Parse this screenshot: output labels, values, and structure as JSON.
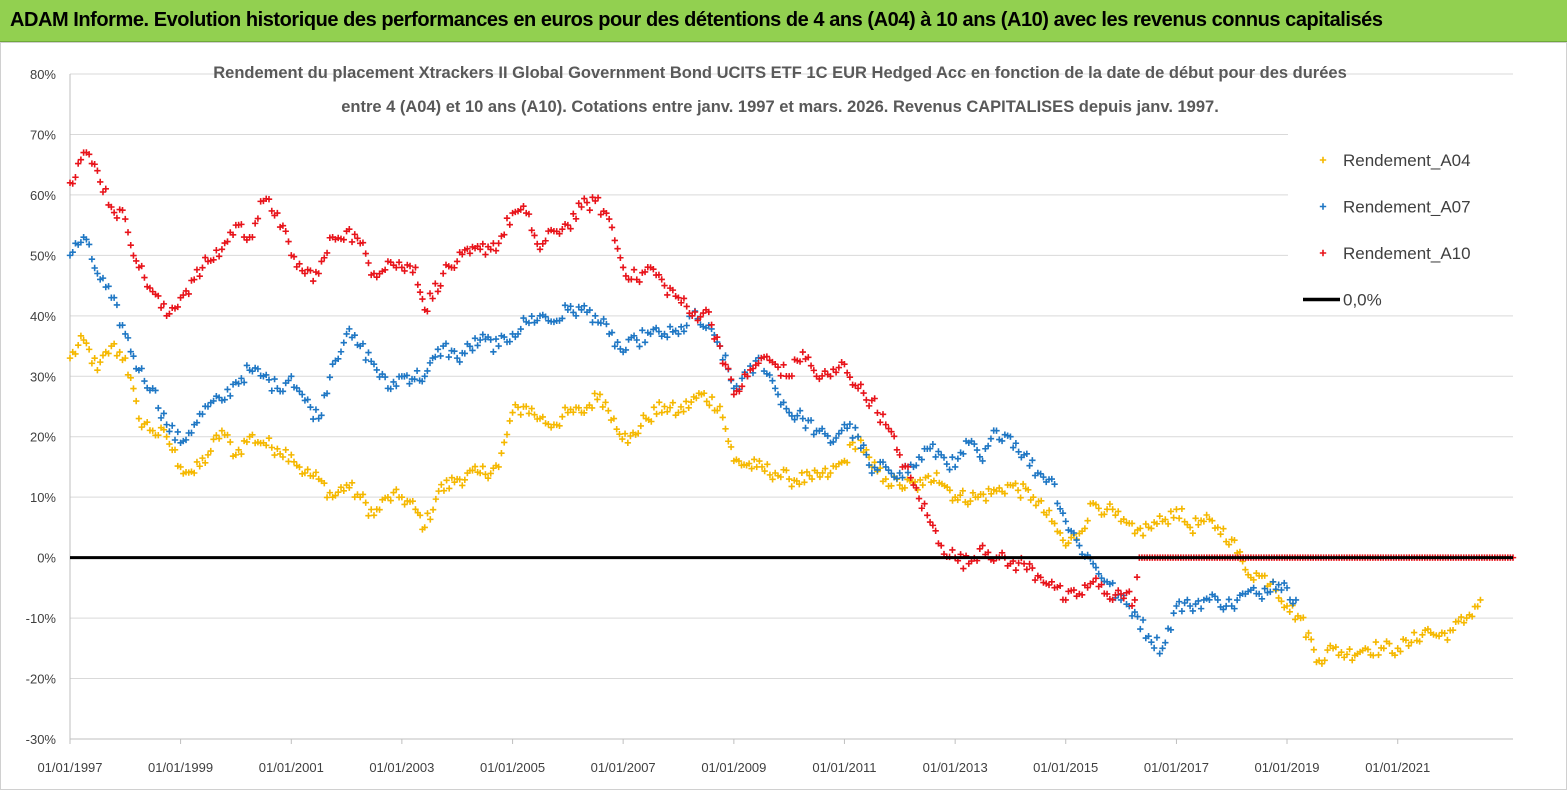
{
  "banner": {
    "title": "ADAM Informe. Evolution historique des performances en euros pour des détentions de 4 ans (A04) à 10 ans (A10) avec les revenus connus capitalisés"
  },
  "chart_data": {
    "type": "scatter",
    "title": "Rendement du placement Xtrackers II Global Government Bond UCITS ETF 1C EUR Hedged Acc en fonction de la date de début pour des durées",
    "subtitle": "entre 4 (A04) et 10 ans (A10). Cotations entre janv. 1997 et mars. 2026. Revenus CAPITALISES depuis janv. 1997.",
    "xlabel": "",
    "ylabel": "",
    "x_ticks": [
      "01/01/1997",
      "01/01/1999",
      "01/01/2001",
      "01/01/2003",
      "01/01/2005",
      "01/01/2007",
      "01/01/2009",
      "01/01/2011",
      "01/01/2013",
      "01/01/2015",
      "01/01/2017",
      "01/01/2019",
      "01/01/2021"
    ],
    "y_ticks": [
      "80%",
      "70%",
      "60%",
      "50%",
      "40%",
      "30%",
      "20%",
      "10%",
      "0%",
      "-10%",
      "-20%",
      "-30%"
    ],
    "xlim": [
      "1997-01-01",
      "2023-02-01"
    ],
    "ylim": [
      -30,
      80
    ],
    "grid": "horizontal",
    "legend_position": "top-right",
    "series": [
      {
        "name": "Rendement_A04",
        "color": "#f5b800",
        "marker": "+",
        "points": [
          [
            "1997-01-01",
            33
          ],
          [
            "1997-04-01",
            36
          ],
          [
            "1997-07-01",
            31
          ],
          [
            "1997-10-01",
            35
          ],
          [
            "1998-01-01",
            33
          ],
          [
            "1998-04-01",
            23
          ],
          [
            "1998-07-01",
            21
          ],
          [
            "1998-10-01",
            20
          ],
          [
            "1999-01-01",
            15
          ],
          [
            "1999-04-01",
            14
          ],
          [
            "1999-07-01",
            17
          ],
          [
            "1999-10-01",
            21
          ],
          [
            "2000-01-01",
            17
          ],
          [
            "2000-04-01",
            20
          ],
          [
            "2000-07-01",
            19
          ],
          [
            "2000-10-01",
            18
          ],
          [
            "2001-01-01",
            17
          ],
          [
            "2001-04-01",
            14
          ],
          [
            "2001-07-01",
            13
          ],
          [
            "2001-10-01",
            10
          ],
          [
            "2002-01-01",
            12
          ],
          [
            "2002-04-01",
            10
          ],
          [
            "2002-07-01",
            7
          ],
          [
            "2002-10-01",
            10
          ],
          [
            "2003-01-01",
            10
          ],
          [
            "2003-04-01",
            8
          ],
          [
            "2003-06-01",
            5
          ],
          [
            "2003-09-01",
            11
          ],
          [
            "2004-01-01",
            13
          ],
          [
            "2004-06-01",
            14
          ],
          [
            "2004-10-01",
            15
          ],
          [
            "2005-01-01",
            24
          ],
          [
            "2005-04-01",
            25
          ],
          [
            "2005-07-01",
            23
          ],
          [
            "2005-10-01",
            22
          ],
          [
            "2006-01-01",
            24
          ],
          [
            "2006-04-01",
            24
          ],
          [
            "2006-08-01",
            27
          ],
          [
            "2006-11-01",
            23
          ],
          [
            "2007-02-01",
            19
          ],
          [
            "2007-06-01",
            23
          ],
          [
            "2007-10-01",
            25
          ],
          [
            "2008-01-01",
            24
          ],
          [
            "2008-06-01",
            27
          ],
          [
            "2008-10-01",
            25
          ],
          [
            "2009-01-01",
            16
          ],
          [
            "2009-06-01",
            15
          ],
          [
            "2009-10-01",
            14
          ],
          [
            "2010-01-01",
            13
          ],
          [
            "2010-06-01",
            13
          ],
          [
            "2010-10-01",
            14
          ],
          [
            "2011-01-01",
            16
          ],
          [
            "2011-04-01",
            20
          ],
          [
            "2011-07-01",
            15
          ],
          [
            "2011-10-01",
            13
          ],
          [
            "2012-01-01",
            12
          ],
          [
            "2012-06-01",
            12
          ],
          [
            "2012-09-01",
            14
          ],
          [
            "2013-01-01",
            10
          ],
          [
            "2013-06-01",
            10
          ],
          [
            "2013-10-01",
            11
          ],
          [
            "2014-01-01",
            12
          ],
          [
            "2014-06-01",
            10
          ],
          [
            "2014-10-01",
            6
          ],
          [
            "2015-01-01",
            2
          ],
          [
            "2015-04-01",
            4
          ],
          [
            "2015-07-01",
            9
          ],
          [
            "2015-10-01",
            8
          ],
          [
            "2016-01-01",
            6
          ],
          [
            "2016-04-01",
            4
          ],
          [
            "2016-07-01",
            5
          ],
          [
            "2016-10-01",
            6
          ],
          [
            "2017-01-01",
            8
          ],
          [
            "2017-04-01",
            5
          ],
          [
            "2017-07-01",
            6
          ],
          [
            "2017-10-01",
            5
          ],
          [
            "2018-01-01",
            3
          ],
          [
            "2018-04-01",
            -2
          ],
          [
            "2018-07-01",
            -3
          ],
          [
            "2018-10-01",
            -4
          ],
          [
            "2019-01-01",
            -8
          ],
          [
            "2019-04-01",
            -10
          ],
          [
            "2019-08-01",
            -17
          ],
          [
            "2019-11-01",
            -15
          ],
          [
            "2020-02-01",
            -16
          ],
          [
            "2020-06-01",
            -15
          ],
          [
            "2020-10-01",
            -15
          ],
          [
            "2021-01-01",
            -15
          ],
          [
            "2021-04-01",
            -14
          ],
          [
            "2021-07-01",
            -12
          ],
          [
            "2021-10-01",
            -13
          ],
          [
            "2022-01-01",
            -12
          ],
          [
            "2022-04-01",
            -10
          ],
          [
            "2022-07-01",
            -7
          ]
        ]
      },
      {
        "name": "Rendement_A07",
        "color": "#1f77c4",
        "marker": "+",
        "points": [
          [
            "1997-01-01",
            50
          ],
          [
            "1997-04-01",
            53
          ],
          [
            "1997-07-01",
            47
          ],
          [
            "1997-10-01",
            43
          ],
          [
            "1998-01-01",
            37
          ],
          [
            "1998-04-01",
            31
          ],
          [
            "1998-07-01",
            28
          ],
          [
            "1998-10-01",
            22
          ],
          [
            "1999-01-01",
            19
          ],
          [
            "1999-04-01",
            22
          ],
          [
            "1999-07-01",
            25
          ],
          [
            "1999-10-01",
            26
          ],
          [
            "2000-01-01",
            29
          ],
          [
            "2000-04-01",
            31
          ],
          [
            "2000-07-01",
            30
          ],
          [
            "2000-10-01",
            28
          ],
          [
            "2001-01-01",
            30
          ],
          [
            "2001-04-01",
            26
          ],
          [
            "2001-07-01",
            23
          ],
          [
            "2001-10-01",
            32
          ],
          [
            "2002-01-01",
            37
          ],
          [
            "2002-04-01",
            35
          ],
          [
            "2002-07-01",
            32
          ],
          [
            "2002-10-01",
            28
          ],
          [
            "2003-01-01",
            30
          ],
          [
            "2003-06-01",
            30
          ],
          [
            "2003-10-01",
            35
          ],
          [
            "2004-01-01",
            33
          ],
          [
            "2004-06-01",
            36
          ],
          [
            "2004-10-01",
            35
          ],
          [
            "2005-01-01",
            37
          ],
          [
            "2005-04-01",
            39
          ],
          [
            "2005-07-01",
            40
          ],
          [
            "2005-10-01",
            39
          ],
          [
            "2006-01-01",
            41
          ],
          [
            "2006-04-01",
            41
          ],
          [
            "2006-07-01",
            40
          ],
          [
            "2006-10-01",
            37
          ],
          [
            "2007-01-01",
            34
          ],
          [
            "2007-04-01",
            36
          ],
          [
            "2007-07-01",
            37
          ],
          [
            "2007-10-01",
            37
          ],
          [
            "2008-01-01",
            37
          ],
          [
            "2008-04-01",
            40
          ],
          [
            "2008-07-01",
            38
          ],
          [
            "2008-10-01",
            35
          ],
          [
            "2009-01-01",
            28
          ],
          [
            "2009-04-01",
            30
          ],
          [
            "2009-07-01",
            33
          ],
          [
            "2009-10-01",
            28
          ],
          [
            "2010-01-01",
            24
          ],
          [
            "2010-04-01",
            23
          ],
          [
            "2010-07-01",
            21
          ],
          [
            "2010-10-01",
            19
          ],
          [
            "2011-01-01",
            22
          ],
          [
            "2011-04-01",
            20
          ],
          [
            "2011-07-01",
            14
          ],
          [
            "2011-10-01",
            15
          ],
          [
            "2012-01-01",
            14
          ],
          [
            "2012-04-01",
            15
          ],
          [
            "2012-07-01",
            18
          ],
          [
            "2012-10-01",
            17
          ],
          [
            "2013-01-01",
            15
          ],
          [
            "2013-04-01",
            19
          ],
          [
            "2013-07-01",
            16
          ],
          [
            "2013-10-01",
            21
          ],
          [
            "2014-01-01",
            20
          ],
          [
            "2014-04-01",
            17
          ],
          [
            "2014-07-01",
            14
          ],
          [
            "2014-10-01",
            13
          ],
          [
            "2015-01-01",
            6
          ],
          [
            "2015-04-01",
            2
          ],
          [
            "2015-07-01",
            -1
          ],
          [
            "2015-10-01",
            -4
          ],
          [
            "2016-01-01",
            -7
          ],
          [
            "2016-04-01",
            -9
          ],
          [
            "2016-07-01",
            -13
          ],
          [
            "2016-10-01",
            -15
          ],
          [
            "2017-01-01",
            -8
          ],
          [
            "2017-04-01",
            -8
          ],
          [
            "2017-07-01",
            -7
          ],
          [
            "2017-10-01",
            -7
          ],
          [
            "2018-01-01",
            -8
          ],
          [
            "2018-04-01",
            -6
          ],
          [
            "2018-07-01",
            -6
          ],
          [
            "2018-10-01",
            -4
          ],
          [
            "2019-01-01",
            -5
          ],
          [
            "2019-03-01",
            -7
          ]
        ]
      },
      {
        "name": "Rendement_A10",
        "color": "#e8141b",
        "marker": "+",
        "points": [
          [
            "1997-01-01",
            62
          ],
          [
            "1997-04-01",
            67
          ],
          [
            "1997-07-01",
            64
          ],
          [
            "1997-10-01",
            58
          ],
          [
            "1998-01-01",
            56
          ],
          [
            "1998-04-01",
            48
          ],
          [
            "1998-07-01",
            44
          ],
          [
            "1998-10-01",
            40
          ],
          [
            "1999-01-01",
            43
          ],
          [
            "1999-04-01",
            46
          ],
          [
            "1999-07-01",
            49
          ],
          [
            "1999-10-01",
            51
          ],
          [
            "2000-01-01",
            55
          ],
          [
            "2000-04-01",
            53
          ],
          [
            "2000-07-01",
            59
          ],
          [
            "2000-10-01",
            57
          ],
          [
            "2001-01-01",
            50
          ],
          [
            "2001-04-01",
            47
          ],
          [
            "2001-07-01",
            47
          ],
          [
            "2001-10-01",
            53
          ],
          [
            "2002-01-01",
            54
          ],
          [
            "2002-04-01",
            52
          ],
          [
            "2002-07-01",
            47
          ],
          [
            "2002-10-01",
            49
          ],
          [
            "2003-01-01",
            48
          ],
          [
            "2003-04-01",
            48
          ],
          [
            "2003-06-01",
            41
          ],
          [
            "2003-10-01",
            47
          ],
          [
            "2004-01-01",
            49
          ],
          [
            "2004-06-01",
            51
          ],
          [
            "2004-10-01",
            52
          ],
          [
            "2005-01-01",
            57
          ],
          [
            "2005-04-01",
            57
          ],
          [
            "2005-07-01",
            51
          ],
          [
            "2005-10-01",
            54
          ],
          [
            "2006-01-01",
            55
          ],
          [
            "2006-04-01",
            58
          ],
          [
            "2006-07-01",
            59
          ],
          [
            "2006-10-01",
            56
          ],
          [
            "2007-01-01",
            48
          ],
          [
            "2007-04-01",
            46
          ],
          [
            "2007-07-01",
            48
          ],
          [
            "2007-10-01",
            45
          ],
          [
            "2008-01-01",
            43
          ],
          [
            "2008-04-01",
            40
          ],
          [
            "2008-07-01",
            41
          ],
          [
            "2008-10-01",
            35
          ],
          [
            "2009-01-01",
            27
          ],
          [
            "2009-04-01",
            30
          ],
          [
            "2009-07-01",
            33
          ],
          [
            "2009-10-01",
            32
          ],
          [
            "2010-01-01",
            30
          ],
          [
            "2010-04-01",
            34
          ],
          [
            "2010-07-01",
            30
          ],
          [
            "2010-10-01",
            30
          ],
          [
            "2011-01-01",
            32
          ],
          [
            "2011-04-01",
            28
          ],
          [
            "2011-07-01",
            26
          ],
          [
            "2011-10-01",
            22
          ],
          [
            "2012-01-01",
            17
          ],
          [
            "2012-04-01",
            12
          ],
          [
            "2012-07-01",
            7
          ],
          [
            "2012-10-01",
            2
          ],
          [
            "2013-01-01",
            0
          ],
          [
            "2013-04-01",
            -1
          ],
          [
            "2013-07-01",
            2
          ],
          [
            "2013-10-01",
            0
          ],
          [
            "2014-01-01",
            -1
          ],
          [
            "2014-04-01",
            -1
          ],
          [
            "2014-07-01",
            -3
          ],
          [
            "2014-10-01",
            -4
          ],
          [
            "2015-01-01",
            -7
          ],
          [
            "2015-04-01",
            -6
          ],
          [
            "2015-07-01",
            -4
          ],
          [
            "2015-10-01",
            -6
          ],
          [
            "2016-01-01",
            -6
          ],
          [
            "2016-04-01",
            -7
          ],
          [
            "2016-05-01",
            0
          ],
          [
            "2023-02-01",
            0
          ]
        ]
      }
    ],
    "reference_line": {
      "name": "0,0%",
      "value": 0,
      "color": "#000000"
    }
  }
}
